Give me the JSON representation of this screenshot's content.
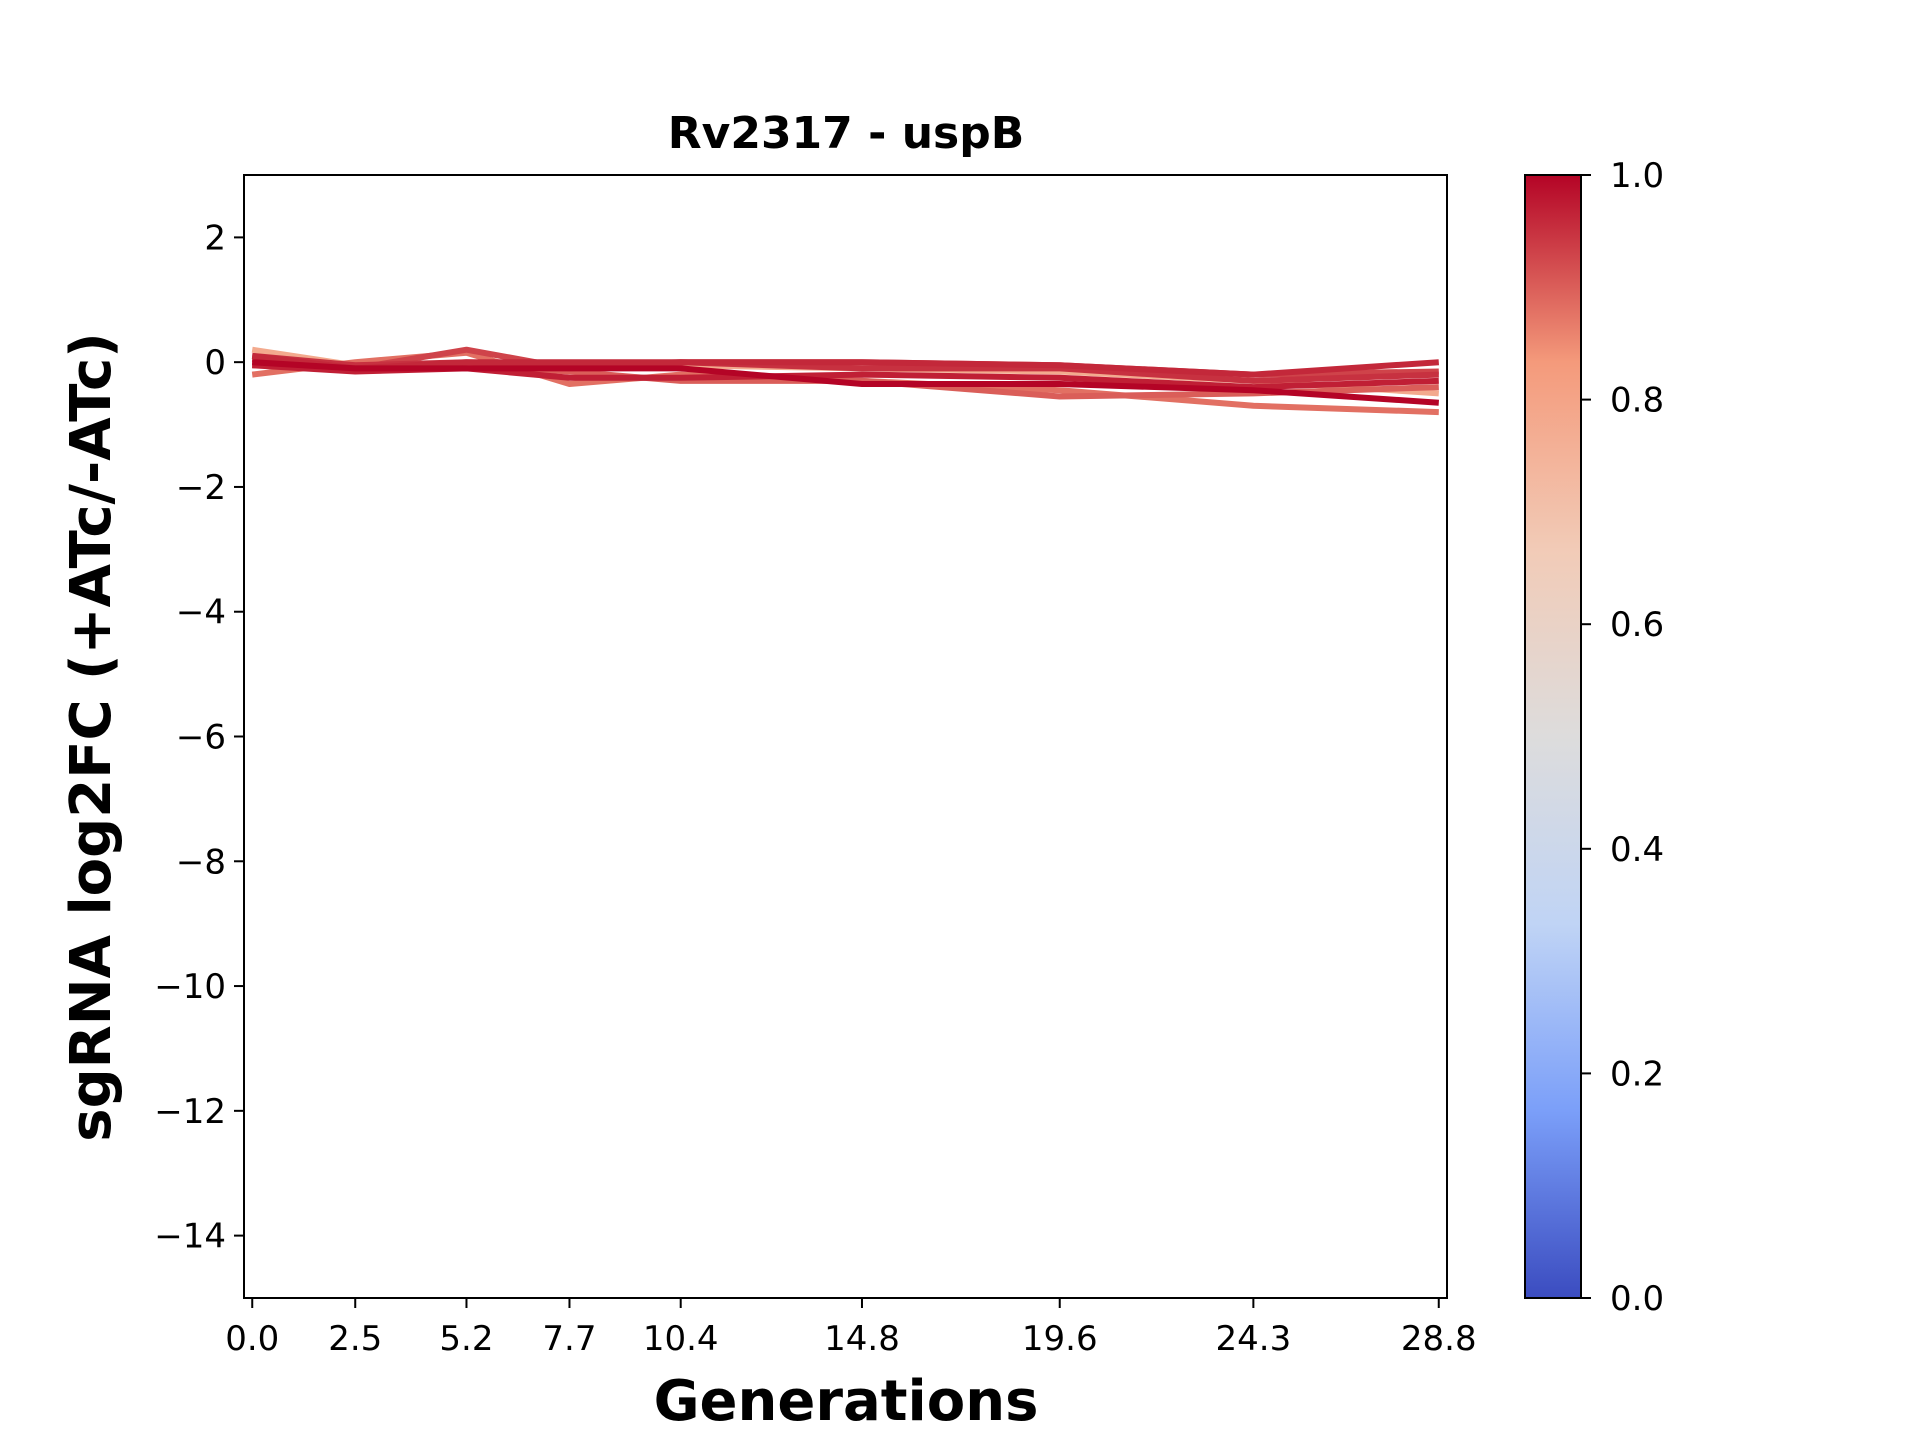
{
  "chart_data": {
    "type": "line",
    "title": "Rv2317 - uspB",
    "xlabel": "Generations",
    "ylabel": "sgRNA log2FC (+ATc/-ATc)",
    "x": [
      0.0,
      2.5,
      5.2,
      7.7,
      10.4,
      14.8,
      19.6,
      24.3,
      28.8
    ],
    "xticks": [
      "0.0",
      "2.5",
      "5.2",
      "7.7",
      "10.4",
      "14.8",
      "19.6",
      "24.3",
      "28.8"
    ],
    "xlim": [
      -0.2,
      29.0
    ],
    "ylim": [
      -15,
      3
    ],
    "yticks": [
      2,
      0,
      -2,
      -4,
      -6,
      -8,
      -10,
      -12,
      -14
    ],
    "ytick_labels": [
      "2",
      "0",
      "−2",
      "−4",
      "−6",
      "−8",
      "−10",
      "−12",
      "−14"
    ],
    "grid": false,
    "series": [
      {
        "color_value": 0.78,
        "values": [
          0.2,
          -0.05,
          -0.1,
          -0.1,
          -0.05,
          -0.1,
          -0.15,
          -0.3,
          -0.5
        ]
      },
      {
        "color_value": 0.88,
        "values": [
          -0.2,
          0.0,
          0.15,
          -0.35,
          -0.2,
          -0.3,
          -0.45,
          -0.7,
          -0.8
        ]
      },
      {
        "color_value": 0.9,
        "values": [
          -0.05,
          -0.05,
          -0.05,
          -0.15,
          -0.3,
          -0.3,
          -0.55,
          -0.5,
          -0.4
        ]
      },
      {
        "color_value": 0.93,
        "values": [
          0.05,
          -0.1,
          0.2,
          -0.1,
          0.0,
          0.0,
          -0.05,
          -0.2,
          -0.15
        ]
      },
      {
        "color_value": 0.95,
        "values": [
          0.1,
          -0.05,
          0.0,
          -0.05,
          0.0,
          -0.1,
          -0.1,
          -0.3,
          -0.2
        ]
      },
      {
        "color_value": 0.96,
        "values": [
          0.1,
          -0.1,
          0.0,
          0.0,
          0.0,
          0.0,
          -0.05,
          -0.2,
          0.0
        ]
      },
      {
        "color_value": 0.97,
        "values": [
          -0.05,
          -0.15,
          -0.1,
          -0.25,
          -0.25,
          -0.2,
          -0.25,
          -0.4,
          -0.3
        ]
      },
      {
        "color_value": 1.0,
        "values": [
          0.0,
          -0.1,
          -0.1,
          -0.1,
          -0.1,
          -0.35,
          -0.35,
          -0.45,
          -0.65
        ]
      }
    ],
    "colorbar": {
      "colormap": "coolwarm",
      "range": [
        0.0,
        1.0
      ],
      "ticks": [
        "0.0",
        "0.2",
        "0.4",
        "0.6",
        "0.8",
        "1.0"
      ],
      "stops": [
        "#3b4cc0",
        "#7b9ff9",
        "#c0d4f5",
        "#dddcdc",
        "#f2cbb7",
        "#f49a7b",
        "#b40426"
      ]
    }
  }
}
